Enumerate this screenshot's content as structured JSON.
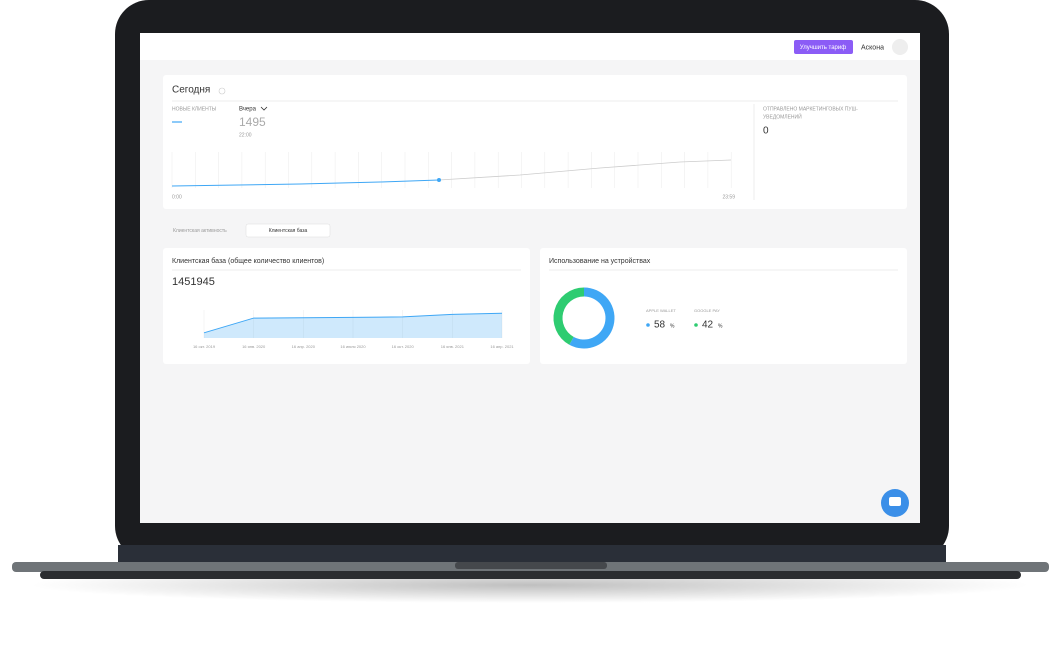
{
  "header": {
    "upgrade_button": "Улучшить тариф",
    "user_name": "Аскона"
  },
  "today": {
    "title": "Сегодня",
    "new_clients_label": "НОВЫЕ КЛИЕНТЫ",
    "period": "Вчера",
    "value": 1495,
    "time": "22:00",
    "start_time": "0:00",
    "end_time": "23:59",
    "push_label_1": "ОТПРАВЛЕНО МАРКЕТИНГОВЫХ ПУШ-",
    "push_label_2": "УВЕДОМЛЕНИЙ",
    "push_value": 0
  },
  "tabs": [
    "Клиентская активность",
    "Клиентская база"
  ],
  "client_base": {
    "title": "Клиентская база (общее количество клиентов)",
    "total": 1451945,
    "dates": [
      "16 окт. 2019",
      "16 янв. 2020",
      "16 апр. 2020",
      "16 июля 2020",
      "16 окт. 2020",
      "16 янв. 2021",
      "16 апр. 2021"
    ],
    "values": [
      300000,
      1150000,
      1170000,
      1190000,
      1220000,
      1360000,
      1430000
    ],
    "ylim": [
      0,
      1500000
    ],
    "color": "#3fa7f5"
  },
  "devices": {
    "title": "Использование на устройствах",
    "items": [
      {
        "name": "APPLE WALLET",
        "value": 58,
        "unit": "%",
        "color": "#3fa7f5"
      },
      {
        "name": "GOOGLE PAY",
        "value": 42,
        "unit": "%",
        "color": "#2ecc71"
      }
    ]
  }
}
